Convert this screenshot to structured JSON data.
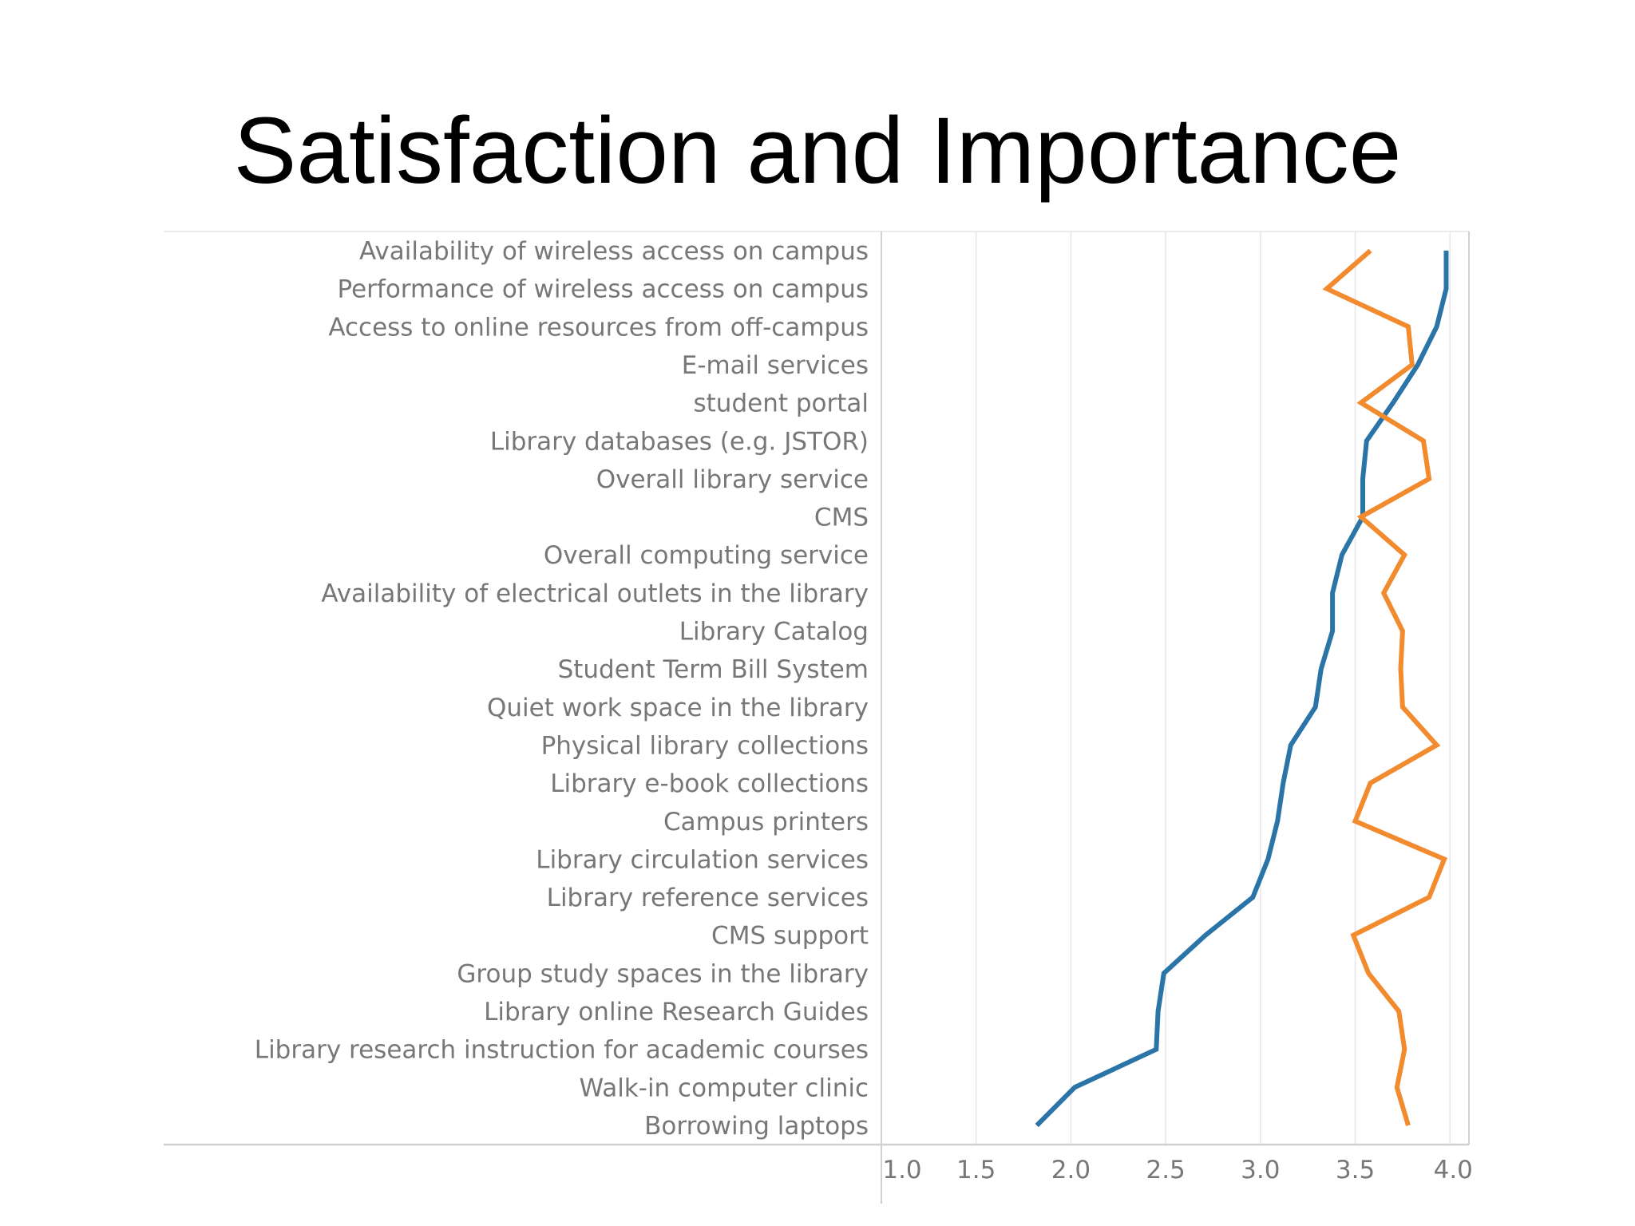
{
  "slide": {
    "title": "Satisfaction and Importance"
  },
  "colors": {
    "satisfaction_line": "#2a74a8",
    "importance_line": "#f28a2e",
    "grid": "#e6e6ec",
    "axis": "#cfcfd4",
    "label_text": "#777777"
  },
  "chart_data": {
    "type": "line",
    "orientation": "horizontal",
    "categories": [
      "Availability of wireless access on campus",
      "Performance of wireless access on campus",
      "Access to online resources from off-campus",
      "E-mail services",
      "student portal",
      "Library databases (e.g. JSTOR)",
      "Overall library service",
      "CMS",
      "Overall computing service",
      "Availability of electrical outlets in the library",
      "Library Catalog",
      "Student Term Bill System",
      "Quiet work space in the library",
      "Physical library collections",
      "Library e-book collections",
      "Campus printers",
      "Library circulation services",
      "Library reference services",
      "CMS support",
      "Group study spaces in the library",
      "Library online Research Guides",
      "Library research instruction for academic courses",
      "Walk-in computer clinic",
      "Borrowing laptops"
    ],
    "series": [
      {
        "color": "#2a74a8",
        "values": [
          3.98,
          3.98,
          3.93,
          3.83,
          3.7,
          3.56,
          3.54,
          3.54,
          3.43,
          3.38,
          3.38,
          3.32,
          3.29,
          3.16,
          3.12,
          3.09,
          3.04,
          2.96,
          2.71,
          2.49,
          2.46,
          2.45,
          2.02,
          1.82
        ]
      },
      {
        "color": "#f28a2e",
        "values": [
          3.58,
          3.35,
          3.78,
          3.8,
          3.53,
          3.86,
          3.89,
          3.53,
          3.76,
          3.65,
          3.75,
          3.74,
          3.75,
          3.93,
          3.58,
          3.5,
          3.97,
          3.89,
          3.49,
          3.57,
          3.73,
          3.76,
          3.72,
          3.78
        ]
      }
    ],
    "x_axis": {
      "ticks": [
        "1.0",
        "1.5",
        "2.0",
        "2.5",
        "3.0",
        "3.5",
        "4.0"
      ],
      "tick_values": [
        1.0,
        1.5,
        2.0,
        2.5,
        3.0,
        3.5,
        4.0
      ],
      "xlim": [
        1.0,
        4.1
      ]
    },
    "grid": true,
    "legend": "none",
    "title": "",
    "xlabel": "",
    "ylabel": ""
  }
}
